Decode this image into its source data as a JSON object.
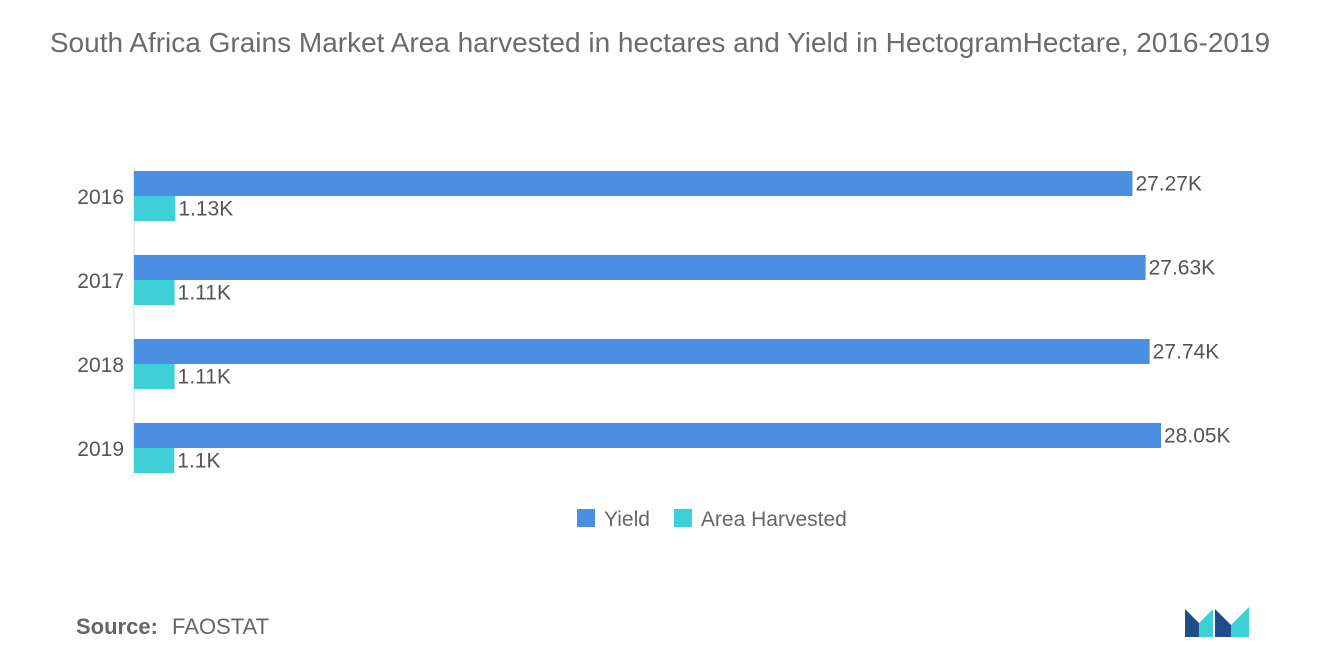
{
  "chart_data": {
    "type": "bar",
    "orientation": "horizontal",
    "title": "South Africa Grains Market Area harvested in hectares and Yield in HectogramHectare, 2016-2019",
    "categories": [
      "2016",
      "2017",
      "2018",
      "2019"
    ],
    "series": [
      {
        "name": "Yield",
        "color": "#4a8fe2",
        "values": [
          27270,
          27630,
          27740,
          28050
        ],
        "labels": [
          "27.27K",
          "27.63K",
          "27.74K",
          "28.05K"
        ]
      },
      {
        "name": "Area Harvested",
        "color": "#3ed0d6",
        "values": [
          1130,
          1110,
          1110,
          1100
        ],
        "labels": [
          "1.13K",
          "1.11K",
          "1.11K",
          "1.1K"
        ]
      }
    ],
    "xlim": [
      0,
      28050
    ],
    "grid": false,
    "legend_position": "bottom"
  },
  "source": {
    "label": "Source:",
    "value": "FAOSTAT"
  },
  "logo": {
    "name": "mordor-intelligence-logo",
    "colors": [
      "#1d4e89",
      "#3ed0d6"
    ]
  }
}
